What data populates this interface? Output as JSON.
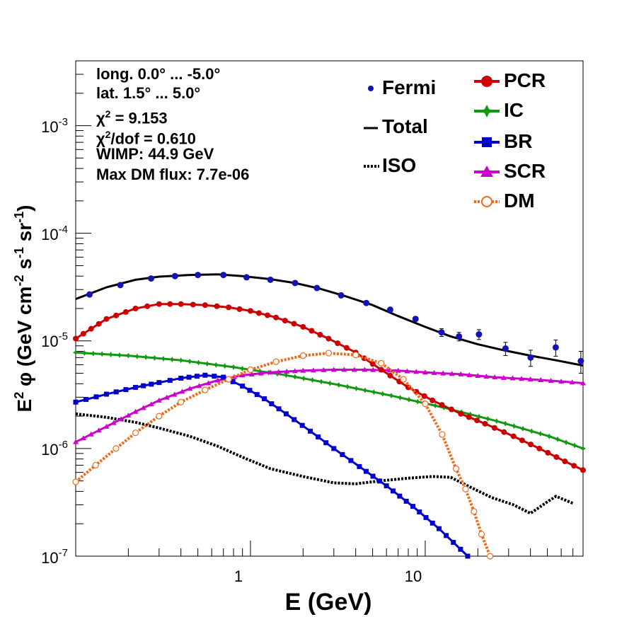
{
  "info": {
    "line1": "long. 0.0° ... -5.0°",
    "line2": "lat. 1.5° ... 5.0°",
    "chi2_symbol": "χ",
    "chi2_sup": "2",
    "chi2_value": " = 9.153",
    "chi2dof_symbol": "χ",
    "chi2dof_sup": "2",
    "chi2dof_value": "/dof = 0.610",
    "line5": "WIMP: 44.9 GeV",
    "line6": "Max DM flux: 7.7e-06"
  },
  "legend": {
    "fermi": "Fermi",
    "total": "Total",
    "iso": "ISO",
    "pcr": "PCR",
    "ic": "IC",
    "br": "BR",
    "scr": "SCR",
    "dm": "DM"
  },
  "colors": {
    "fermi": "#1414b4",
    "pcr": "#cc0000",
    "ic": "#119911",
    "br": "#0000cc",
    "scr": "#cc00cc",
    "dm": "#ee6a1a",
    "total": "#000000",
    "iso": "#000000"
  },
  "chart_data": {
    "type": "scatter",
    "x_scale": "log",
    "y_scale": "log",
    "xlim": [
      0.1,
      80
    ],
    "ylim": [
      1e-07,
      0.004
    ],
    "xlabel": "E (GeV)",
    "ylabel_parts": [
      "E",
      "2",
      " φ (GeV cm",
      "-2",
      " s",
      "-1",
      " sr",
      "-1",
      ")"
    ],
    "x_tick_labels": [
      "1",
      "10"
    ],
    "y_tick_labels": [
      {
        "base": "10",
        "exp": "-7"
      },
      {
        "base": "10",
        "exp": "-6"
      },
      {
        "base": "10",
        "exp": "-5"
      },
      {
        "base": "10",
        "exp": "-4"
      },
      {
        "base": "10",
        "exp": "-3"
      }
    ],
    "series": [
      {
        "name": "Fermi",
        "key": "fermi",
        "x": [
          0.12,
          0.18,
          0.27,
          0.37,
          0.5,
          0.7,
          0.95,
          1.3,
          1.8,
          2.4,
          3.3,
          4.6,
          6.3,
          8.8,
          12.4,
          15.6,
          20.3,
          28.8,
          40.1,
          55.8,
          77.7
        ],
        "y": [
          2.7e-05,
          3.3e-05,
          3.8e-05,
          4e-05,
          4.1e-05,
          4.1e-05,
          3.9e-05,
          3.7e-05,
          3.45e-05,
          3.1e-05,
          2.65e-05,
          2.25e-05,
          1.95e-05,
          1.6e-05,
          1.2e-05,
          1.1e-05,
          1.15e-05,
          8.5e-06,
          7e-06,
          8.7e-06,
          6.5e-06
        ],
        "yerr": [
          5e-07,
          5e-07,
          5e-07,
          5e-07,
          5e-07,
          5e-07,
          5e-07,
          5e-07,
          5e-07,
          5e-07,
          5e-07,
          5e-07,
          6e-07,
          8e-07,
          1e-06,
          1e-06,
          1.2e-06,
          1.2e-06,
          1.2e-06,
          1.5e-06,
          1.5e-06
        ]
      },
      {
        "name": "Total",
        "key": "total",
        "x": [
          0.1,
          0.15,
          0.22,
          0.3,
          0.45,
          0.65,
          0.9,
          1.3,
          1.8,
          2.5,
          3.5,
          5.0,
          7.0,
          10.0,
          14.0,
          20.0,
          28.0,
          40.0,
          56.0,
          80.0
        ],
        "y": [
          2.45e-05,
          3.15e-05,
          3.7e-05,
          3.95e-05,
          4.1e-05,
          4.15e-05,
          4e-05,
          3.75e-05,
          3.45e-05,
          3.05e-05,
          2.6e-05,
          2.15e-05,
          1.7e-05,
          1.35e-05,
          1.1e-05,
          9.3e-06,
          8.2e-06,
          7.3e-06,
          6.6e-06,
          5.9e-06
        ]
      },
      {
        "name": "PCR",
        "key": "pcr",
        "x": [
          0.1,
          0.15,
          0.22,
          0.3,
          0.4,
          0.55,
          0.75,
          1.0,
          1.4,
          2.0,
          2.8,
          4.0,
          5.6,
          8.0,
          11.0,
          16.0,
          22.0,
          32.0,
          45.0,
          63.0,
          80.0
        ],
        "y": [
          1.05e-05,
          1.6e-05,
          2e-05,
          2.2e-05,
          2.2e-05,
          2.15e-05,
          2.05e-05,
          1.9e-05,
          1.65e-05,
          1.35e-05,
          1.05e-05,
          7.8e-06,
          5.4e-06,
          3.7e-06,
          2.8e-06,
          2.1e-06,
          1.7e-06,
          1.3e-06,
          1e-06,
          7.6e-07,
          6.3e-07
        ]
      },
      {
        "name": "IC",
        "key": "ic",
        "x": [
          0.1,
          0.2,
          0.4,
          0.8,
          1.6,
          3.2,
          6.4,
          12.8,
          25.6,
          51.2,
          80.0
        ],
        "y": [
          7.8e-06,
          7.3e-06,
          6.6e-06,
          5.7e-06,
          4.8e-06,
          3.9e-06,
          3.1e-06,
          2.4e-06,
          1.8e-06,
          1.3e-06,
          1e-06
        ]
      },
      {
        "name": "BR",
        "key": "br",
        "x": [
          0.1,
          0.15,
          0.22,
          0.3,
          0.4,
          0.55,
          0.7,
          0.9,
          1.2,
          1.6,
          2.2,
          3.0,
          4.2,
          6.0,
          8.5,
          12.0,
          17.5
        ],
        "y": [
          2.7e-06,
          3.2e-06,
          3.7e-06,
          4.1e-06,
          4.5e-06,
          4.8e-06,
          4.6e-06,
          3.8e-06,
          2.9e-06,
          2.1e-06,
          1.45e-06,
          1e-06,
          6.8e-07,
          4.5e-07,
          2.9e-07,
          1.8e-07,
          1e-07
        ]
      },
      {
        "name": "SCR",
        "key": "scr",
        "x": [
          0.1,
          0.15,
          0.22,
          0.3,
          0.45,
          0.65,
          0.9,
          1.3,
          2.0,
          3.0,
          4.5,
          7.0,
          10.0,
          16.0,
          25.0,
          40.0,
          60.0,
          80.0
        ],
        "y": [
          1.15e-06,
          1.6e-06,
          2.2e-06,
          2.8e-06,
          3.6e-06,
          4.3e-06,
          4.8e-06,
          5.1e-06,
          5.3e-06,
          5.4e-06,
          5.4e-06,
          5.3e-06,
          5.1e-06,
          4.9e-06,
          4.6e-06,
          4.4e-06,
          4.2e-06,
          4.05e-06
        ]
      },
      {
        "name": "DM",
        "key": "dm",
        "x": [
          0.1,
          0.13,
          0.17,
          0.22,
          0.3,
          0.4,
          0.55,
          0.75,
          1.0,
          1.4,
          2.0,
          2.8,
          4.0,
          5.6,
          7.5,
          10.0,
          12.5,
          15.0,
          17.0,
          19.0,
          21.0,
          23.5
        ],
        "y": [
          4.9e-07,
          7e-07,
          1e-06,
          1.4e-06,
          2e-06,
          2.7e-06,
          3.5e-06,
          4.4e-06,
          5.4e-06,
          6.4e-06,
          7.3e-06,
          7.7e-06,
          7.4e-06,
          6.2e-06,
          4.4e-06,
          2.6e-06,
          1.35e-06,
          6.5e-07,
          4.2e-07,
          2.6e-07,
          1.6e-07,
          1e-07
        ]
      },
      {
        "name": "ISO",
        "key": "iso",
        "x": [
          0.1,
          0.15,
          0.22,
          0.3,
          0.45,
          0.65,
          0.9,
          1.3,
          2.0,
          3.0,
          4.0,
          5.5,
          8.0,
          11.0,
          14.0,
          18.0,
          24.0,
          32.0,
          40.0,
          50.0,
          56.0,
          70.0
        ],
        "y": [
          2.1e-06,
          1.95e-06,
          1.75e-06,
          1.55e-06,
          1.3e-06,
          1.05e-06,
          8.3e-07,
          6.5e-07,
          5.5e-07,
          4.8e-07,
          4.7e-07,
          5e-07,
          5.3e-07,
          5.5e-07,
          5.4e-07,
          4.4e-07,
          3.5e-07,
          3e-07,
          2.5e-07,
          3.2e-07,
          3.6e-07,
          3.1e-07
        ]
      }
    ]
  }
}
